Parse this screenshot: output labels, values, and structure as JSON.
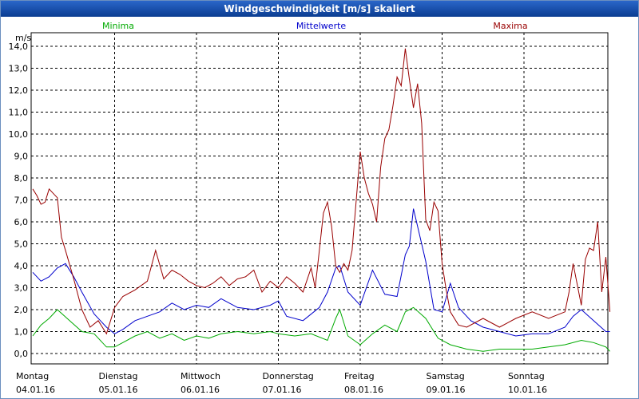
{
  "window": {
    "title": "Windgeschwindigkeit [m/s] skaliert"
  },
  "chart_data": {
    "type": "line",
    "title": "Windgeschwindigkeit [m/s] skaliert",
    "ylabel": "m/s",
    "xlabel": "",
    "ylim": [
      0,
      14
    ],
    "yticks": [
      0,
      1,
      2,
      3,
      4,
      5,
      6,
      7,
      8,
      9,
      10,
      11,
      12,
      13,
      14
    ],
    "ytick_labels": [
      "0,0",
      "1,0",
      "2,0",
      "3,0",
      "4,0",
      "5,0",
      "6,0",
      "7,0",
      "8,0",
      "9,0",
      "10,0",
      "11,0",
      "12,0",
      "13,0",
      "14,0"
    ],
    "x_unit": "days",
    "xlim": [
      0,
      7.1
    ],
    "days": [
      {
        "weekday": "Montag",
        "date": "04.01.16",
        "x": 0
      },
      {
        "weekday": "Dienstag",
        "date": "05.01.16",
        "x": 1
      },
      {
        "weekday": "Mittwoch",
        "date": "06.01.16",
        "x": 2
      },
      {
        "weekday": "Donnerstag",
        "date": "07.01.16",
        "x": 3
      },
      {
        "weekday": "Freitag",
        "date": "08.01.16",
        "x": 4
      },
      {
        "weekday": "Samstag",
        "date": "09.01.16",
        "x": 5
      },
      {
        "weekday": "Sonntag",
        "date": "10.01.16",
        "x": 6
      }
    ],
    "grid": true,
    "series": [
      {
        "name": "Minima",
        "color": "#00aa00",
        "x": [
          0,
          0.1,
          0.2,
          0.3,
          0.45,
          0.6,
          0.75,
          0.9,
          1.0,
          1.1,
          1.25,
          1.4,
          1.55,
          1.7,
          1.85,
          2.0,
          2.15,
          2.3,
          2.5,
          2.7,
          2.9,
          3.0,
          3.2,
          3.4,
          3.6,
          3.7,
          3.75,
          3.85,
          4.0,
          4.15,
          4.3,
          4.45,
          4.55,
          4.65,
          4.8,
          4.95,
          5.1,
          5.3,
          5.5,
          5.7,
          5.9,
          6.1,
          6.3,
          6.5,
          6.7,
          6.85,
          7.0,
          7.05
        ],
        "values": [
          0.8,
          1.3,
          1.6,
          2.0,
          1.5,
          1.0,
          0.9,
          0.3,
          0.3,
          0.5,
          0.8,
          1.0,
          0.7,
          0.9,
          0.6,
          0.8,
          0.7,
          0.9,
          1.0,
          0.9,
          1.0,
          0.9,
          0.8,
          0.9,
          0.6,
          1.6,
          2.0,
          0.8,
          0.4,
          0.9,
          1.3,
          1.0,
          1.9,
          2.1,
          1.6,
          0.7,
          0.4,
          0.2,
          0.1,
          0.2,
          0.2,
          0.2,
          0.3,
          0.4,
          0.6,
          0.5,
          0.3,
          0.1
        ]
      },
      {
        "name": "Mittelwerte",
        "color": "#0000cc",
        "x": [
          0,
          0.1,
          0.2,
          0.3,
          0.4,
          0.5,
          0.6,
          0.75,
          0.9,
          1.0,
          1.1,
          1.25,
          1.4,
          1.55,
          1.7,
          1.85,
          2.0,
          2.15,
          2.3,
          2.5,
          2.7,
          2.9,
          3.0,
          3.1,
          3.3,
          3.5,
          3.6,
          3.7,
          3.75,
          3.85,
          4.0,
          4.15,
          4.3,
          4.45,
          4.55,
          4.6,
          4.65,
          4.75,
          4.8,
          4.9,
          5.0,
          5.1,
          5.2,
          5.35,
          5.5,
          5.7,
          5.9,
          6.1,
          6.3,
          6.5,
          6.6,
          6.7,
          6.85,
          7.0,
          7.05
        ],
        "values": [
          3.7,
          3.3,
          3.5,
          3.9,
          4.1,
          3.5,
          2.8,
          1.8,
          1.2,
          0.9,
          1.1,
          1.5,
          1.7,
          1.9,
          2.3,
          2.0,
          2.2,
          2.1,
          2.5,
          2.1,
          2.0,
          2.2,
          2.4,
          1.7,
          1.5,
          2.1,
          2.8,
          3.9,
          4.0,
          2.8,
          2.2,
          3.8,
          2.7,
          2.6,
          4.5,
          4.9,
          6.6,
          5.0,
          4.2,
          2.0,
          1.9,
          3.2,
          2.1,
          1.5,
          1.2,
          1.0,
          0.8,
          0.9,
          0.9,
          1.2,
          1.7,
          2.0,
          1.5,
          1.0,
          1.0
        ]
      },
      {
        "name": "Maxima",
        "color": "#990000",
        "x": [
          0,
          0.05,
          0.1,
          0.15,
          0.2,
          0.25,
          0.3,
          0.35,
          0.4,
          0.5,
          0.6,
          0.7,
          0.8,
          0.9,
          1.0,
          1.1,
          1.25,
          1.4,
          1.5,
          1.6,
          1.7,
          1.8,
          1.9,
          2.0,
          2.1,
          2.2,
          2.3,
          2.4,
          2.5,
          2.6,
          2.7,
          2.8,
          2.9,
          3.0,
          3.1,
          3.2,
          3.3,
          3.4,
          3.45,
          3.5,
          3.55,
          3.6,
          3.65,
          3.7,
          3.75,
          3.8,
          3.85,
          3.9,
          4.0,
          4.05,
          4.1,
          4.15,
          4.2,
          4.25,
          4.3,
          4.35,
          4.4,
          4.45,
          4.5,
          4.55,
          4.6,
          4.65,
          4.7,
          4.75,
          4.8,
          4.85,
          4.9,
          4.95,
          5.0,
          5.05,
          5.1,
          5.2,
          5.3,
          5.5,
          5.7,
          5.9,
          6.1,
          6.3,
          6.5,
          6.55,
          6.6,
          6.7,
          6.75,
          6.8,
          6.85,
          6.9,
          6.95,
          7.0,
          7.05
        ],
        "values": [
          7.5,
          7.2,
          6.8,
          6.9,
          7.5,
          7.3,
          7.1,
          5.3,
          4.7,
          3.4,
          2.0,
          1.2,
          1.5,
          0.9,
          2.1,
          2.6,
          2.9,
          3.3,
          4.7,
          3.4,
          3.8,
          3.6,
          3.3,
          3.1,
          3.0,
          3.2,
          3.5,
          3.1,
          3.4,
          3.5,
          3.8,
          2.8,
          3.3,
          3.0,
          3.5,
          3.2,
          2.8,
          3.9,
          3.0,
          4.7,
          6.4,
          6.9,
          5.8,
          4.0,
          3.7,
          4.1,
          3.8,
          4.7,
          9.2,
          8.0,
          7.3,
          6.8,
          6.0,
          8.5,
          9.8,
          10.2,
          11.3,
          12.6,
          12.2,
          13.9,
          12.5,
          11.2,
          12.3,
          10.5,
          6.1,
          5.6,
          6.9,
          6.5,
          4.1,
          2.9,
          1.9,
          1.3,
          1.2,
          1.6,
          1.2,
          1.6,
          1.9,
          1.6,
          1.9,
          2.8,
          4.1,
          2.2,
          4.3,
          4.8,
          4.7,
          6.0,
          2.8,
          4.4,
          1.9
        ]
      }
    ]
  }
}
